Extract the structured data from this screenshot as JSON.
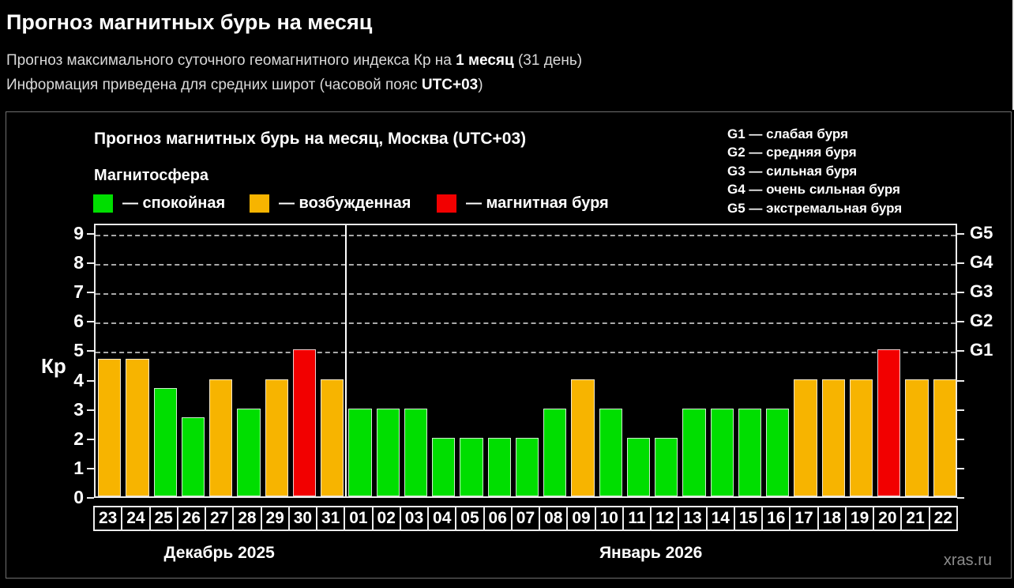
{
  "page": {
    "title": "Прогноз магнитных бурь на месяц",
    "subtitle_prefix": "Прогноз максимального суточного геомагнитного индекса Кр на ",
    "subtitle_bold": "1 месяц",
    "subtitle_suffix": " (31 день)",
    "info_prefix": "Информация приведена для средних широт (часовой пояс ",
    "info_bold": "UTC+03",
    "info_suffix": ")"
  },
  "chart": {
    "title": "Прогноз магнитных бурь на месяц, Москва (UTC+03)",
    "legend_title": "Магнитосфера",
    "ylabel": "Кр",
    "watermark": "xras.ru",
    "g_scale": [
      "G1 — слабая буря",
      "G2 — средняя буря",
      "G3 — сильная буря",
      "G4 — очень сильная буря",
      "G5 — экстремальная буря"
    ]
  },
  "chart_data": {
    "type": "bar",
    "title": "Прогноз магнитных бурь на месяц, Москва (UTC+03)",
    "ylabel": "Кр",
    "ylim": [
      0,
      9.35
    ],
    "yticks": [
      0,
      1,
      2,
      3,
      4,
      5,
      6,
      7,
      8,
      9
    ],
    "gridlines_at": [
      5,
      6,
      7,
      8,
      9
    ],
    "grid": "dashed, horizontal only",
    "legend_position": "top-left",
    "colors": {
      "quiet": "#00DE00",
      "excited": "#F7B400",
      "storm": "#F20000"
    },
    "legend": [
      {
        "state": "quiet",
        "label": "— спокойная"
      },
      {
        "state": "excited",
        "label": "— возбужденная"
      },
      {
        "state": "storm",
        "label": "— магнитная буря"
      }
    ],
    "right_axis": [
      {
        "label": "G1",
        "kp": 5
      },
      {
        "label": "G2",
        "kp": 6
      },
      {
        "label": "G3",
        "kp": 7
      },
      {
        "label": "G4",
        "kp": 8
      },
      {
        "label": "G5",
        "kp": 9
      }
    ],
    "groups": [
      {
        "month_label": "Декабрь 2025",
        "days": [
          {
            "day": "23",
            "kp": 4.7,
            "state": "excited"
          },
          {
            "day": "24",
            "kp": 4.7,
            "state": "excited"
          },
          {
            "day": "25",
            "kp": 3.7,
            "state": "quiet"
          },
          {
            "day": "26",
            "kp": 2.7,
            "state": "quiet"
          },
          {
            "day": "27",
            "kp": 4,
            "state": "excited"
          },
          {
            "day": "28",
            "kp": 3,
            "state": "quiet"
          },
          {
            "day": "29",
            "kp": 4,
            "state": "excited"
          },
          {
            "day": "30",
            "kp": 5,
            "state": "storm"
          },
          {
            "day": "31",
            "kp": 4,
            "state": "excited"
          }
        ]
      },
      {
        "month_label": "Январь 2026",
        "days": [
          {
            "day": "01",
            "kp": 3,
            "state": "quiet"
          },
          {
            "day": "02",
            "kp": 3,
            "state": "quiet"
          },
          {
            "day": "03",
            "kp": 3,
            "state": "quiet"
          },
          {
            "day": "04",
            "kp": 2,
            "state": "quiet"
          },
          {
            "day": "05",
            "kp": 2,
            "state": "quiet"
          },
          {
            "day": "06",
            "kp": 2,
            "state": "quiet"
          },
          {
            "day": "07",
            "kp": 2,
            "state": "quiet"
          },
          {
            "day": "08",
            "kp": 3,
            "state": "quiet"
          },
          {
            "day": "09",
            "kp": 4,
            "state": "excited"
          },
          {
            "day": "10",
            "kp": 3,
            "state": "quiet"
          },
          {
            "day": "11",
            "kp": 2,
            "state": "quiet"
          },
          {
            "day": "12",
            "kp": 2,
            "state": "quiet"
          },
          {
            "day": "13",
            "kp": 3,
            "state": "quiet"
          },
          {
            "day": "14",
            "kp": 3,
            "state": "quiet"
          },
          {
            "day": "15",
            "kp": 3,
            "state": "quiet"
          },
          {
            "day": "16",
            "kp": 3,
            "state": "quiet"
          },
          {
            "day": "17",
            "kp": 4,
            "state": "excited"
          },
          {
            "day": "18",
            "kp": 4,
            "state": "excited"
          },
          {
            "day": "19",
            "kp": 4,
            "state": "excited"
          },
          {
            "day": "20",
            "kp": 5,
            "state": "storm"
          },
          {
            "day": "21",
            "kp": 4,
            "state": "excited"
          },
          {
            "day": "22",
            "kp": 4,
            "state": "excited"
          }
        ]
      }
    ]
  }
}
